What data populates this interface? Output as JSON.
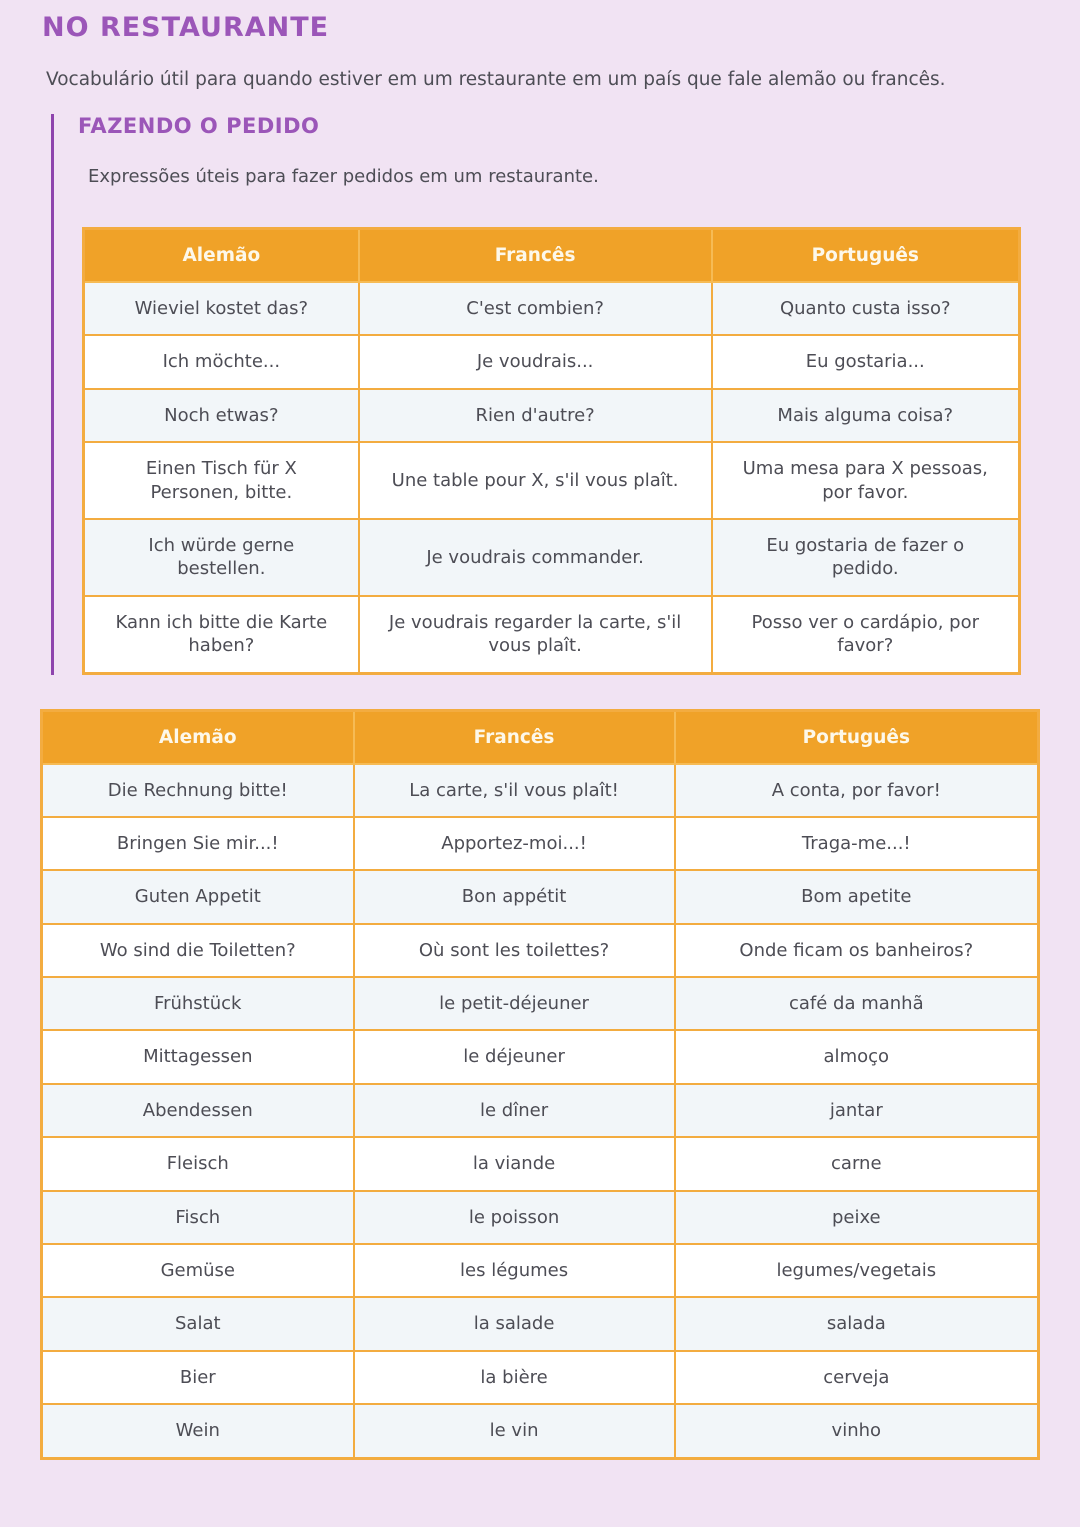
{
  "page": {
    "title": "NO RESTAURANTE",
    "subtitle": "Vocabulário útil para quando estiver em um restaurante em um país que fale alemão ou francês."
  },
  "section": {
    "title": "FAZENDO O PEDIDO",
    "subtitle": "Expressões úteis para fazer pedidos em um restaurante."
  },
  "table1": {
    "headers": [
      "Alemão",
      "Francês",
      "Português"
    ],
    "rows": [
      [
        "Wieviel kostet das?",
        "C'est combien?",
        "Quanto custa isso?"
      ],
      [
        "Ich möchte...",
        "Je voudrais...",
        "Eu gostaria..."
      ],
      [
        "Noch etwas?",
        "Rien d'autre?",
        "Mais alguma coisa?"
      ],
      [
        "Einen Tisch für X Personen, bitte.",
        "Une table pour X, s'il vous plaît.",
        "Uma mesa para X pessoas, por favor."
      ],
      [
        "Ich würde gerne bestellen.",
        "Je voudrais commander.",
        "Eu gostaria de fazer o pedido."
      ],
      [
        "Kann ich bitte die Karte haben?",
        "Je voudrais regarder la carte, s'il vous plaît.",
        "Posso ver o cardápio, por favor?"
      ]
    ]
  },
  "table2": {
    "headers": [
      "Alemão",
      "Francês",
      "Português"
    ],
    "rows": [
      [
        "Die Rechnung bitte!",
        "La carte, s'il vous plaît!",
        "A conta, por favor!"
      ],
      [
        "Bringen Sie mir...!",
        "Apportez-moi...!",
        "Traga-me...!"
      ],
      [
        "Guten Appetit",
        "Bon appétit",
        "Bom apetite"
      ],
      [
        "Wo sind die Toiletten?",
        "Où sont les toilettes?",
        "Onde ficam os banheiros?"
      ],
      [
        "Frühstück",
        "le petit-déjeuner",
        "café da manhã"
      ],
      [
        "Mittagessen",
        "le déjeuner",
        "almoço"
      ],
      [
        "Abendessen",
        "le dîner",
        "jantar"
      ],
      [
        "Fleisch",
        "la viande",
        "carne"
      ],
      [
        "Fisch",
        "le poisson",
        "peixe"
      ],
      [
        "Gemüse",
        "les légumes",
        "legumes/vegetais"
      ],
      [
        "Salat",
        "la salade",
        "salada"
      ],
      [
        "Bier",
        "la bière",
        "cerveja"
      ],
      [
        "Wein",
        "le vin",
        "vinho"
      ]
    ]
  },
  "colors": {
    "background": "#f1e3f3",
    "accent_purple": "#9b56b8",
    "section_bar_purple": "#8e44ad",
    "table_header_orange": "#f0a228",
    "table_border_orange": "#f3ac40",
    "row_alt_blue": "#f2f6f9",
    "row_white": "#ffffff",
    "header_text": "#fdf8ea",
    "body_text": "#4d4d55"
  }
}
